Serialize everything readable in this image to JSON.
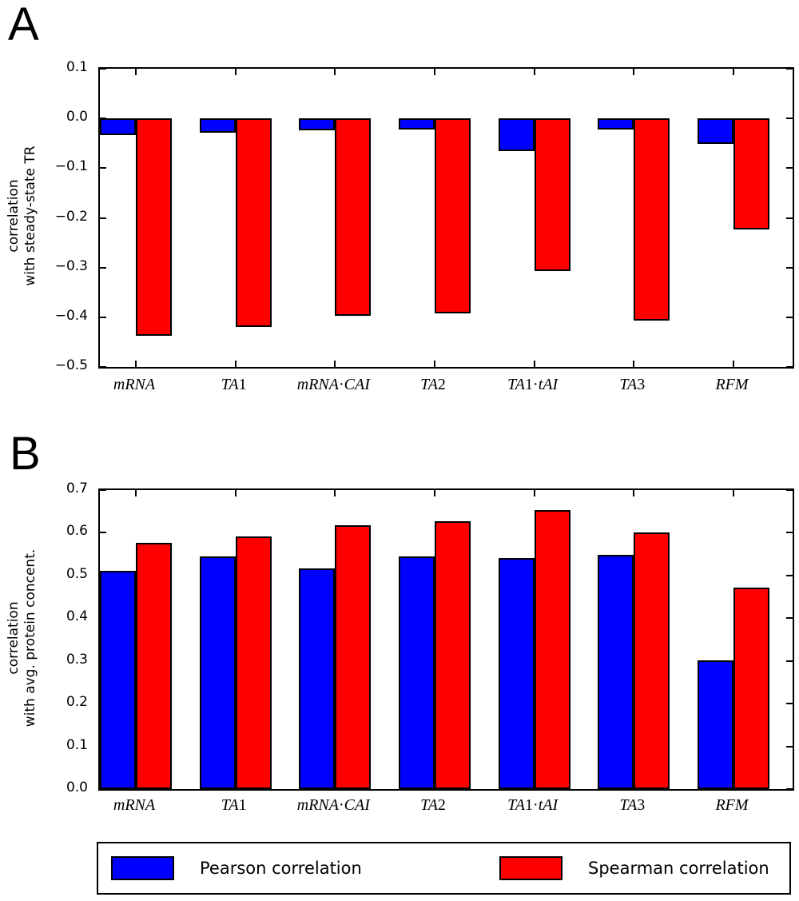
{
  "legend": {
    "entries": [
      {
        "label": "Pearson correlation",
        "color": "#0000ff"
      },
      {
        "label": "Spearman correlation",
        "color": "#ff0000"
      }
    ]
  },
  "chart_data": [
    {
      "type": "bar",
      "panel_label": "A",
      "categories": [
        "mRNA",
        "TA1",
        "mRNA·CAI",
        "TA2",
        "TA1·tAI",
        "TA3",
        "RFM"
      ],
      "series": [
        {
          "name": "Pearson correlation",
          "color": "#0000ff",
          "values": [
            -0.033,
            -0.029,
            -0.024,
            -0.022,
            -0.065,
            -0.023,
            -0.052
          ]
        },
        {
          "name": "Spearman correlation",
          "color": "#ff0000",
          "values": [
            -0.437,
            -0.419,
            -0.397,
            -0.393,
            -0.307,
            -0.406,
            -0.224
          ]
        }
      ],
      "xlabel": "",
      "ylabel": "correlation with steady-state TR",
      "ylabel_lines": [
        "correlation",
        "with steady-state TR"
      ],
      "ylim": [
        -0.5,
        0.1
      ],
      "yticks": [
        0.1,
        0.0,
        -0.1,
        -0.2,
        -0.3,
        -0.4,
        -0.5
      ],
      "grid": false,
      "bar_edge_color": "#000000"
    },
    {
      "type": "bar",
      "panel_label": "B",
      "categories": [
        "mRNA",
        "TA1",
        "mRNA·CAI",
        "TA2",
        "TA1·tAI",
        "TA3",
        "RFM"
      ],
      "series": [
        {
          "name": "Pearson correlation",
          "color": "#0000ff",
          "values": [
            0.511,
            0.544,
            0.517,
            0.545,
            0.54,
            0.548,
            0.302
          ]
        },
        {
          "name": "Spearman correlation",
          "color": "#ff0000",
          "values": [
            0.576,
            0.591,
            0.617,
            0.627,
            0.653,
            0.601,
            0.472
          ]
        }
      ],
      "xlabel": "",
      "ylabel": "correlation with avg. protein concent.",
      "ylabel_lines": [
        "correlation",
        "with avg. protein concent."
      ],
      "ylim": [
        0.0,
        0.7
      ],
      "yticks": [
        0.7,
        0.6,
        0.5,
        0.4,
        0.3,
        0.2,
        0.1,
        0.0
      ],
      "grid": false,
      "bar_edge_color": "#000000",
      "legend_position": "bottom"
    }
  ]
}
